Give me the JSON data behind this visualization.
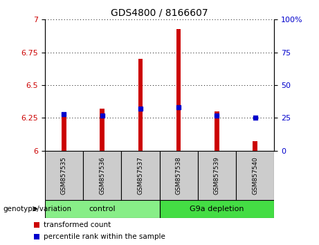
{
  "title": "GDS4800 / 8166607",
  "samples": [
    "GSM857535",
    "GSM857536",
    "GSM857537",
    "GSM857538",
    "GSM857539",
    "GSM857540"
  ],
  "transformed_counts": [
    6.26,
    6.32,
    6.7,
    6.93,
    6.3,
    6.07
  ],
  "percentile_ranks": [
    28,
    27,
    32,
    33,
    27,
    25
  ],
  "ylim_left": [
    6.0,
    7.0
  ],
  "ylim_right": [
    0,
    100
  ],
  "yticks_left": [
    6.0,
    6.25,
    6.5,
    6.75,
    7.0
  ],
  "yticks_right": [
    0,
    25,
    50,
    75,
    100
  ],
  "left_color": "#cc0000",
  "right_color": "#0000cc",
  "bar_width": 0.12,
  "groups": [
    {
      "label": "control",
      "indices": [
        0,
        1,
        2
      ],
      "color": "#88ee88"
    },
    {
      "label": "G9a depletion",
      "indices": [
        3,
        4,
        5
      ],
      "color": "#44dd44"
    }
  ],
  "group_label_prefix": "genotype/variation",
  "legend_items": [
    {
      "label": "transformed count",
      "color": "#cc0000"
    },
    {
      "label": "percentile rank within the sample",
      "color": "#0000cc"
    }
  ],
  "grid_style": "dotted",
  "background_color": "#ffffff",
  "tick_label_area_color": "#cccccc",
  "title_fontsize": 10
}
